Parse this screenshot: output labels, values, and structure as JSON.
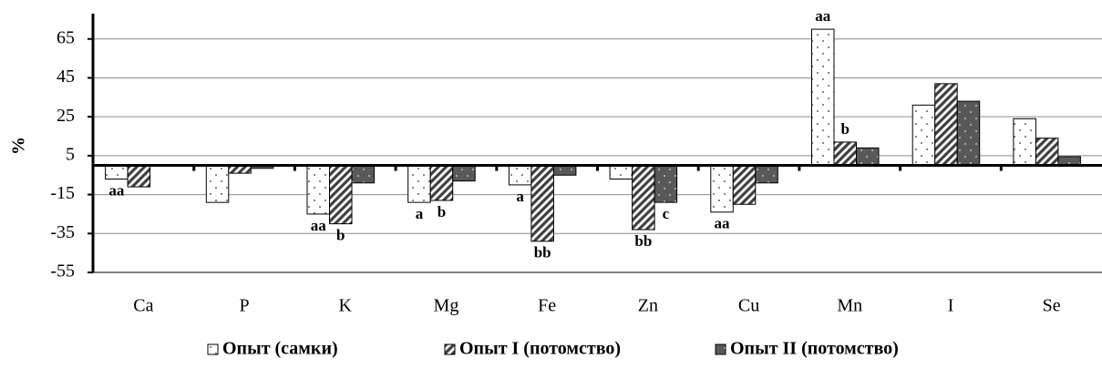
{
  "chart_data": {
    "type": "bar",
    "y_label": "%",
    "categories": [
      "Ca",
      "P",
      "K",
      "Mg",
      "Fe",
      "Zn",
      "Cu",
      "Mn",
      "I",
      "Se"
    ],
    "ylim": [
      -55,
      78
    ],
    "yticks": [
      -55,
      -35,
      -15,
      5,
      25,
      45,
      65
    ],
    "grid": true,
    "legend": "bottom",
    "series": [
      {
        "name": "Опыт (самки)",
        "color": "#ffffff",
        "pattern": "dots",
        "values": [
          -7,
          -19,
          -25,
          -19,
          -10,
          -7,
          -24,
          70,
          31,
          24
        ],
        "annotations": [
          "aa",
          null,
          "aa",
          "a",
          "a",
          null,
          "aa",
          "aa",
          null,
          null
        ]
      },
      {
        "name": "Опыт I (потомство)",
        "color": "#404040",
        "pattern": "hatch",
        "values": [
          -11,
          -4,
          -30,
          -18,
          -39,
          -33,
          -20,
          12,
          42,
          14
        ],
        "annotations": [
          null,
          null,
          "b",
          "b",
          "bb",
          "bb",
          null,
          "b",
          null,
          null
        ]
      },
      {
        "name": "Опыт II (потомство)",
        "color": "#595959",
        "pattern": "dark-dots",
        "values": [
          null,
          -1.5,
          -9,
          -8,
          -5,
          -19,
          -9,
          9,
          33,
          4.5
        ],
        "annotations": [
          null,
          null,
          null,
          null,
          null,
          "c",
          null,
          null,
          null,
          null
        ]
      }
    ]
  }
}
